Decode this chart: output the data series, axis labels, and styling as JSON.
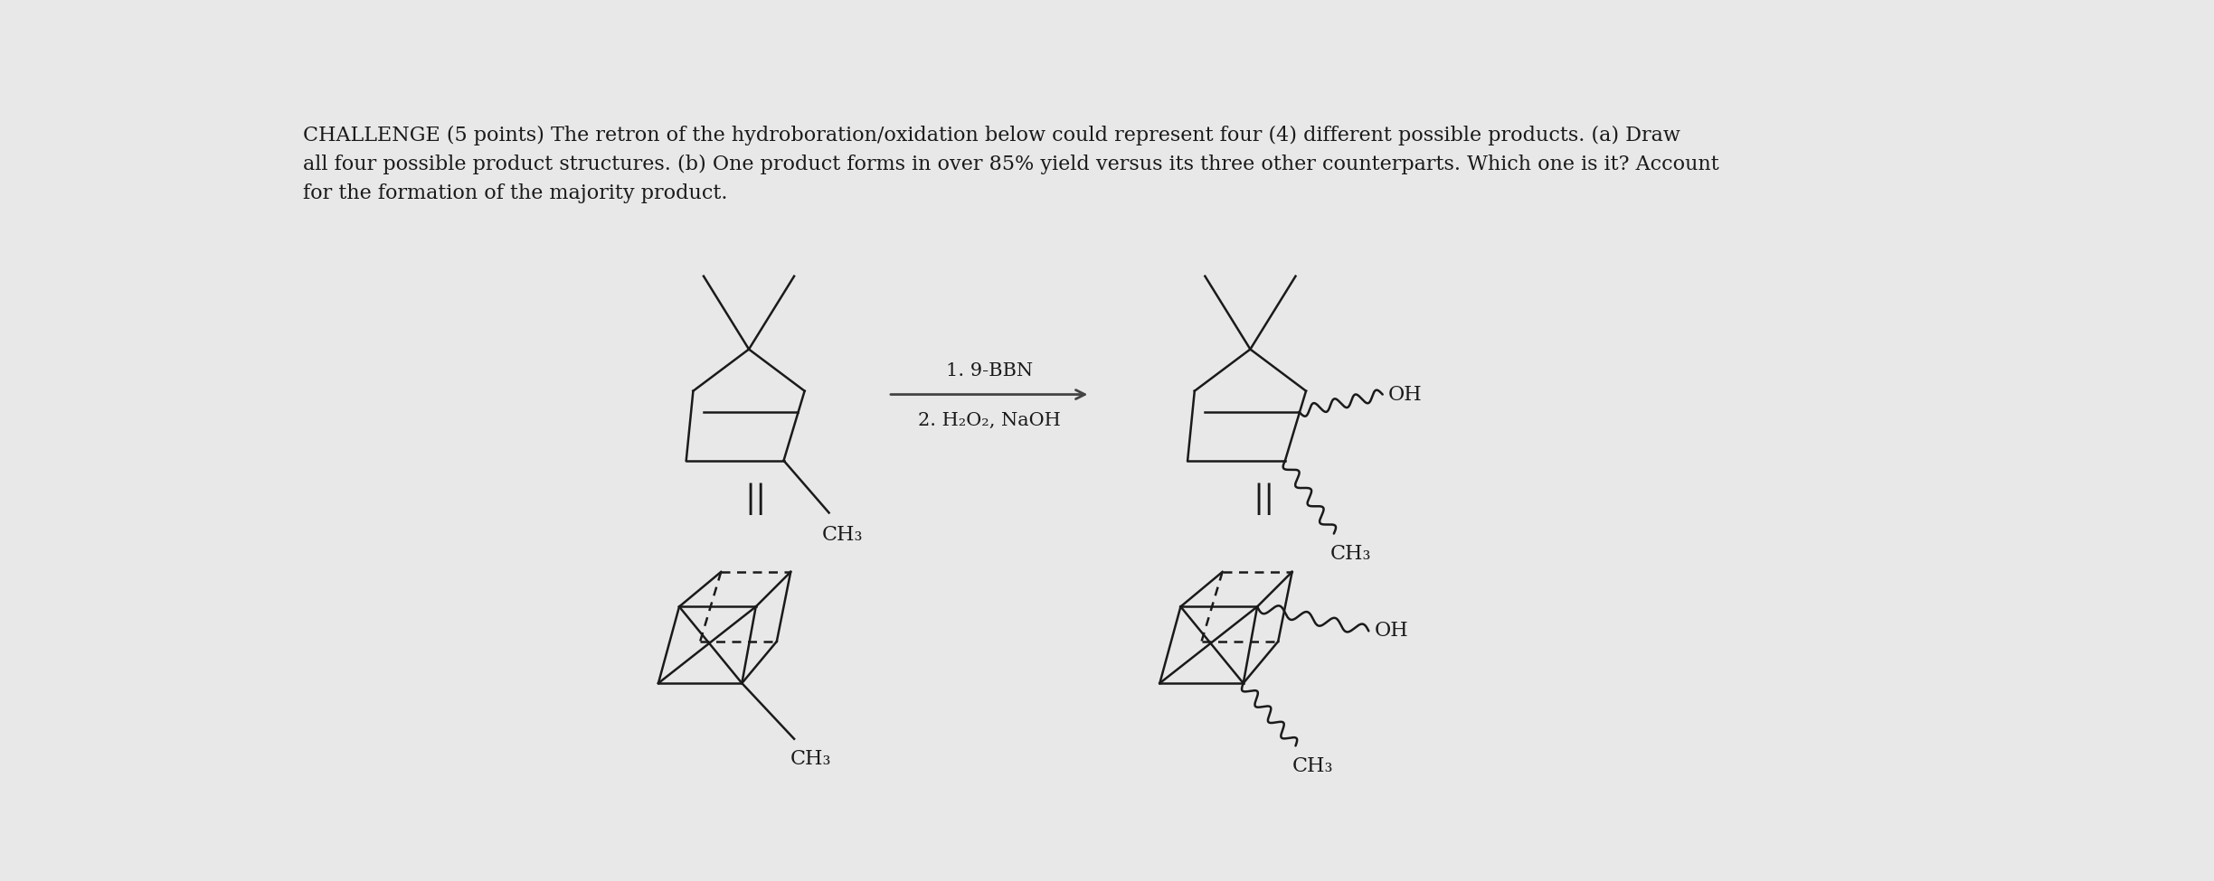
{
  "bg_color": "#e8e8e8",
  "text_color": "#1a1a1a",
  "title_text": "CHALLENGE (5 points) The retron of the hydroboration/oxidation below could represent four (4) different possible products. (a) Draw\nall four possible product structures. (b) One product forms in over 85% yield versus its three other counterparts. Which one is it? Account\nfor the formation of the majority product.",
  "reagent_line1": "1. 9-BBN",
  "reagent_line2": "2. H₂O₂, NaOH",
  "label_OH": "OH",
  "label_CH3": "CH₃",
  "fig_width": 24.48,
  "fig_height": 9.75
}
